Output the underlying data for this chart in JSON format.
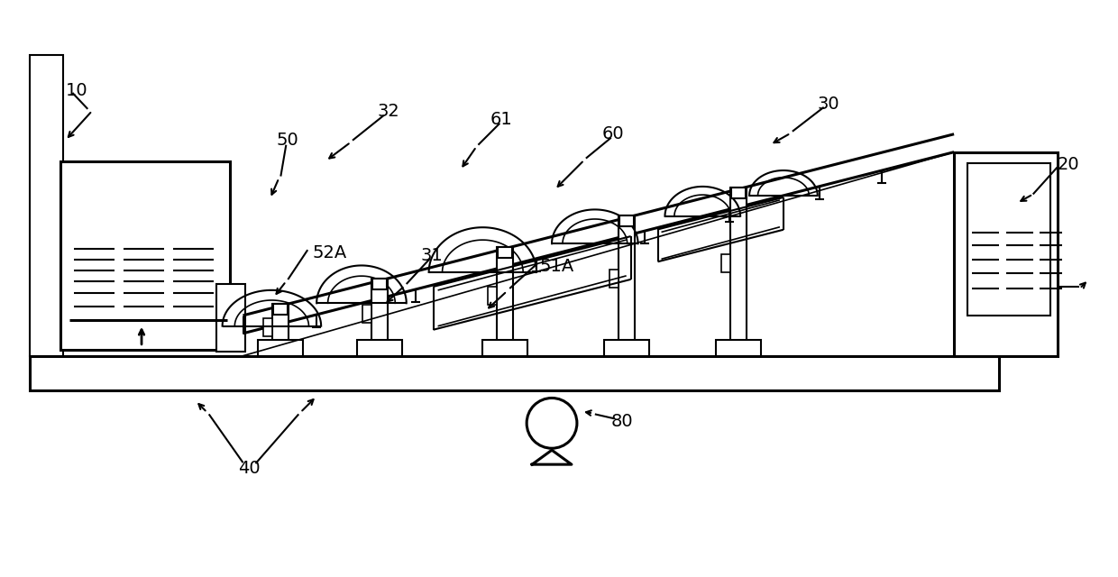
{
  "bg_color": "#ffffff",
  "lc": "#000000",
  "lw": 1.5,
  "lw_t": 2.2
}
